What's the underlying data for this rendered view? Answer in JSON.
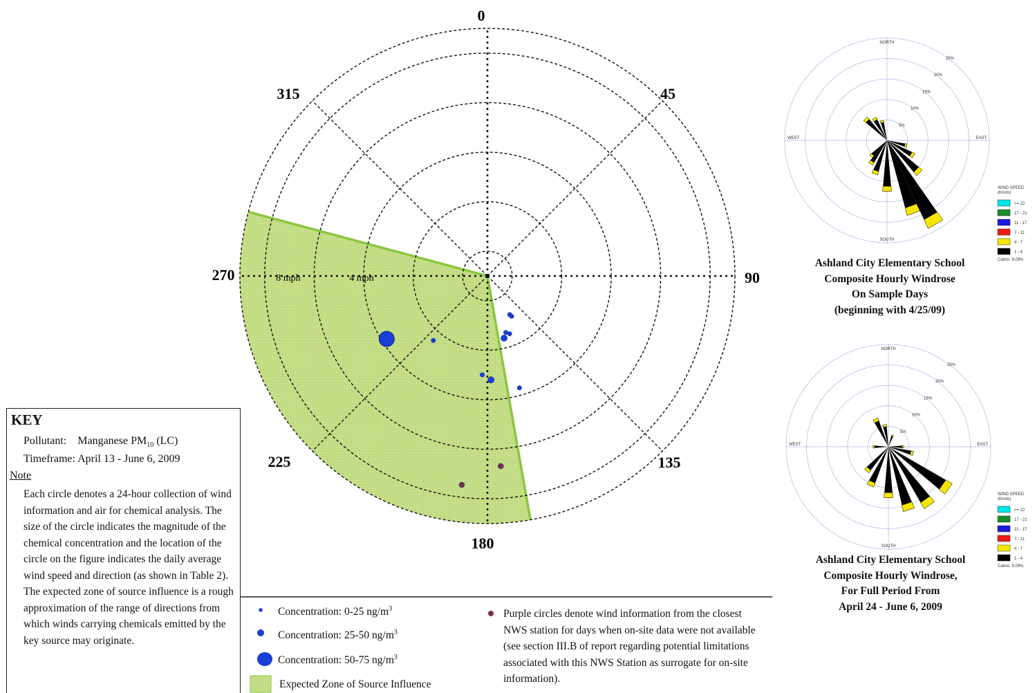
{
  "chart_data": [
    {
      "type": "scatter",
      "subtype": "polar-wind-concentration",
      "direction_labels": [
        "0",
        "45",
        "90",
        "135",
        "180",
        "225",
        "270",
        "315"
      ],
      "radial_labels": [
        "8 mph",
        "4 mph"
      ],
      "rmax_mph": 10,
      "ring_step_mph": 1,
      "source_zone": {
        "from_deg": 170,
        "to_deg": 285,
        "label": "Expected Zone of Source Influence"
      },
      "series": [
        {
          "name": "Concentration: 0-25 ng/m³",
          "marker": "small-dot",
          "color": "#1a3fd6",
          "points": [
            {
              "dir": 150,
              "speed": 1.8
            },
            {
              "dir": 149,
              "speed": 1.9
            },
            {
              "dir": 162,
              "speed": 2.4
            },
            {
              "dir": 159,
              "speed": 2.5
            },
            {
              "dir": 164,
              "speed": 4.7
            },
            {
              "dir": 220,
              "speed": 3.4
            },
            {
              "dir": 183,
              "speed": 4.0
            }
          ]
        },
        {
          "name": "Concentration: 25-50 ng/m³",
          "marker": "medium-dot",
          "color": "#1a3fd6",
          "points": [
            {
              "dir": 165,
              "speed": 2.6
            },
            {
              "dir": 178,
              "speed": 4.2
            }
          ]
        },
        {
          "name": "Concentration: 50-75 ng/m³",
          "marker": "large-dot",
          "color": "#1a3fd6",
          "points": [
            {
              "dir": 238,
              "speed": 4.8
            }
          ]
        },
        {
          "name": "Purple circles (NWS data)",
          "marker": "purple-dot",
          "color": "#7a2f4a",
          "points": [
            {
              "dir": 176,
              "speed": 7.7
            },
            {
              "dir": 187,
              "speed": 8.5
            }
          ]
        }
      ]
    },
    {
      "type": "windrose",
      "directions": [
        "NORTH",
        "EAST",
        "SOUTH",
        "WEST"
      ],
      "ring_labels": [
        "5%",
        "10%",
        "15%",
        "20%",
        "25%"
      ],
      "petals": [
        {
          "dir": 150,
          "length": 0.95
        },
        {
          "dir": 160,
          "length": 0.76
        },
        {
          "dir": 135,
          "length": 0.45
        },
        {
          "dir": 120,
          "length": 0.3
        },
        {
          "dir": 105,
          "length": 0.2
        },
        {
          "dir": 180,
          "length": 0.5
        },
        {
          "dir": 200,
          "length": 0.35
        },
        {
          "dir": 215,
          "length": 0.28
        },
        {
          "dir": 225,
          "length": 0.22
        },
        {
          "dir": 315,
          "length": 0.3
        },
        {
          "dir": 330,
          "length": 0.25
        },
        {
          "dir": 345,
          "length": 0.2
        }
      ],
      "caption": [
        "Ashland City Elementary School",
        "Composite Hourly Windrose",
        "On Sample Days",
        "(beginning with 4/25/09)"
      ]
    },
    {
      "type": "windrose",
      "directions": [
        "NORTH",
        "EAST",
        "SOUTH",
        "WEST"
      ],
      "ring_labels": [
        "5%",
        "10%",
        "15%",
        "20%",
        "25%"
      ],
      "petals": [
        {
          "dir": 125,
          "length": 0.72
        },
        {
          "dir": 145,
          "length": 0.7
        },
        {
          "dir": 162,
          "length": 0.65
        },
        {
          "dir": 180,
          "length": 0.5
        },
        {
          "dir": 205,
          "length": 0.42
        },
        {
          "dir": 222,
          "length": 0.32
        },
        {
          "dir": 105,
          "length": 0.25
        },
        {
          "dir": 90,
          "length": 0.15
        },
        {
          "dir": 335,
          "length": 0.3
        },
        {
          "dir": 350,
          "length": 0.22
        },
        {
          "dir": 20,
          "length": 0.12
        },
        {
          "dir": 270,
          "length": 0.15
        }
      ],
      "caption": [
        "Ashland City Elementary School",
        "Composite Hourly Windrose,",
        "For Full Period From",
        "April 24 - June 6, 2009"
      ]
    }
  ],
  "windspeed_legend": {
    "title": "WIND SPEED",
    "unit": "(Knots)",
    "items": [
      {
        "label": ">= 22",
        "color": "#00e5e5"
      },
      {
        "label": "17 - 21",
        "color": "#1a8a2a"
      },
      {
        "label": "11 - 17",
        "color": "#1a1ae0"
      },
      {
        "label": "7 - 11",
        "color": "#ee1a1a"
      },
      {
        "label": "4 - 7",
        "color": "#f5e600"
      },
      {
        "label": "1 - 4",
        "color": "#000000"
      }
    ],
    "calms": "Calms: 9.09%"
  },
  "key": {
    "title": "KEY",
    "pollutant_label": "Pollutant:",
    "pollutant_value": "Manganese PM",
    "pollutant_sub": "10",
    "pollutant_suffix": " (LC)",
    "timeframe_label": "Timeframe:",
    "timeframe_value": "April 13 - June 6, 2009",
    "note_label": "Note",
    "note_text": "Each circle denotes a 24-hour collection of wind information and air for chemical analysis. The size of the circle indicates the magnitude of the chemical concentration and the location of the circle on the figure indicates the daily average wind speed and direction (as shown in Table 2). The expected zone of source influence is a rough approximation of the range of directions from which winds carrying chemicals emitted by the key source may originate."
  },
  "legend": {
    "c1": "Concentration: 0-25 ng/m",
    "c2": "Concentration: 25-50 ng/m",
    "c3": "Concentration: 50-75 ng/m",
    "sup": "3",
    "zone": "Expected Zone of Source Influence",
    "purple": "Purple circles denote wind information from the closest NWS station for days when on-site data were not available (see section III.B of report regarding potential limitations associated with this NWS Station as surrogate for on-site information)."
  },
  "colors": {
    "zone_fill": "#c7e08a",
    "zone_edge": "#8cc63f",
    "dot_blue": "#1a3fd6",
    "dot_purple": "#7a2f4a"
  }
}
